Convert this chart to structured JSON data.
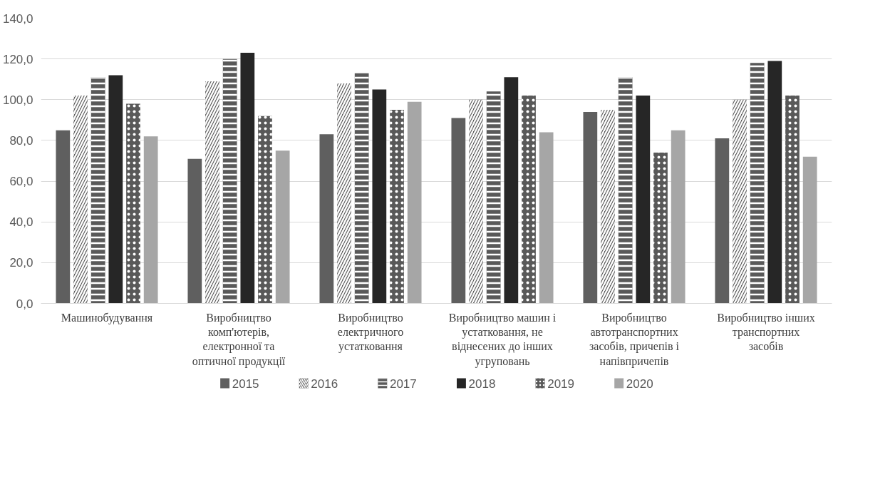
{
  "chart_data": {
    "type": "bar",
    "categories": [
      "Машинобудування",
      "Виробництво комп'ютерів, електронної та оптичної продукції",
      "Виробництво електричного устатковання",
      "Виробництво машин і устатковання, не віднесених до інших угруповань",
      "Виробництво автотранспортних засобів, причепів і напівпричепів",
      "Виробництво інших транспортних засобів"
    ],
    "series": [
      {
        "name": "2015",
        "color": "#5f5f5f",
        "values": [
          85,
          71,
          83,
          91,
          94,
          81
        ]
      },
      {
        "name": "2016",
        "color": "#595959",
        "values": [
          102,
          109,
          108,
          100,
          95,
          100
        ]
      },
      {
        "name": "2017",
        "color": "#595959",
        "values": [
          111,
          120,
          113,
          104,
          111,
          118
        ]
      },
      {
        "name": "2018",
        "color": "#262626",
        "values": [
          112,
          123,
          105,
          111,
          102,
          119
        ]
      },
      {
        "name": "2019",
        "color": "#595959",
        "values": [
          98,
          92,
          95,
          102,
          74,
          102
        ]
      },
      {
        "name": "2020",
        "color": "#a6a6a6",
        "values": [
          82,
          75,
          99,
          84,
          85,
          72
        ]
      }
    ],
    "ylim": [
      0,
      140
    ],
    "yticks": [
      {
        "value": 0,
        "label": "0,0"
      },
      {
        "value": 20,
        "label": "20,0"
      },
      {
        "value": 40,
        "label": "40,0"
      },
      {
        "value": 60,
        "label": "60,0"
      },
      {
        "value": 80,
        "label": "80,0"
      },
      {
        "value": 100,
        "label": "100,0"
      },
      {
        "value": 120,
        "label": "120,0"
      },
      {
        "value": 140,
        "label": "140,0"
      }
    ],
    "grid": "y",
    "legend": "bottom"
  }
}
